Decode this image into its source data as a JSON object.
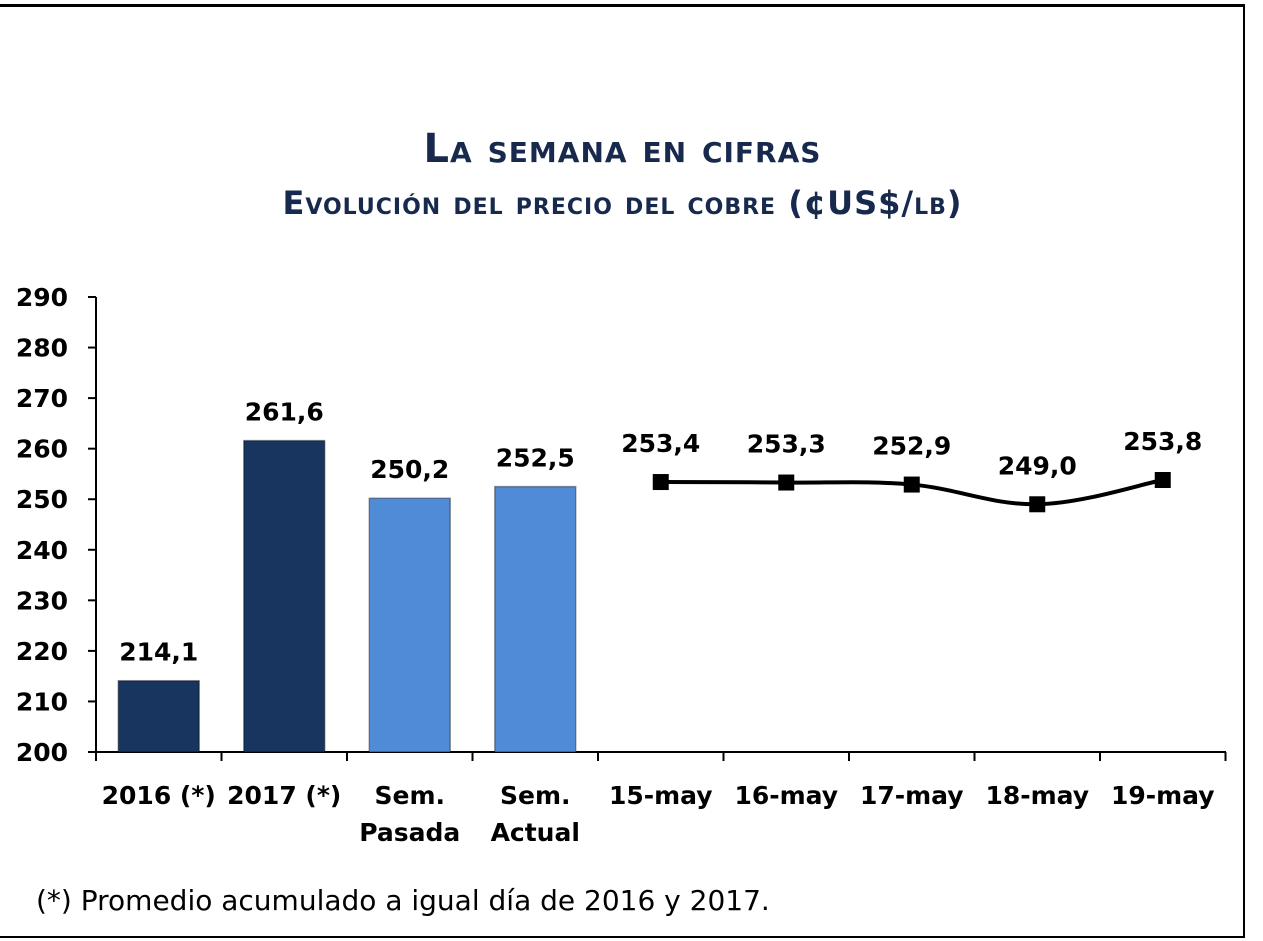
{
  "colors": {
    "historic_bar": "#17355f",
    "weekly_bar": "#4f8bd6",
    "line": "#000000",
    "title": "#17294d"
  },
  "footnote": "(*) Promedio acumulado a igual día de 2016 y 2017.",
  "chart_data": {
    "type": "bar",
    "title": "La semana en cifras",
    "subtitle": "Evolución del precio del cobre  (¢US$/lb)",
    "ylim": [
      200,
      290
    ],
    "yticks": [
      200,
      210,
      220,
      230,
      240,
      250,
      260,
      270,
      280,
      290
    ],
    "grid": false,
    "legend": "none",
    "categories": [
      "2016 (*)",
      "2017 (*)",
      "Sem. Pasada",
      "Sem. Actual",
      "15-may",
      "16-may",
      "17-may",
      "18-may",
      "19-may"
    ],
    "bars": [
      {
        "category": "2016 (*)",
        "label_lines": [
          "2016 (*)"
        ],
        "value": 214.1,
        "value_label": "214,1",
        "color": "#17355f"
      },
      {
        "category": "2017 (*)",
        "label_lines": [
          "2017 (*)"
        ],
        "value": 261.6,
        "value_label": "261,6",
        "color": "#17355f"
      },
      {
        "category": "Sem. Pasada",
        "label_lines": [
          "Sem.",
          "Pasada"
        ],
        "value": 250.2,
        "value_label": "250,2",
        "color": "#4f8bd6"
      },
      {
        "category": "Sem. Actual",
        "label_lines": [
          "Sem.",
          "Actual"
        ],
        "value": 252.5,
        "value_label": "252,5",
        "color": "#4f8bd6"
      }
    ],
    "line": {
      "type": "line",
      "marker": "square",
      "points": [
        {
          "x": "15-may",
          "label_lines": [
            "15-may"
          ],
          "y": 253.4,
          "value_label": "253,4"
        },
        {
          "x": "16-may",
          "label_lines": [
            "16-may"
          ],
          "y": 253.3,
          "value_label": "253,3"
        },
        {
          "x": "17-may",
          "label_lines": [
            "17-may"
          ],
          "y": 252.9,
          "value_label": "252,9"
        },
        {
          "x": "18-may",
          "label_lines": [
            "18-may"
          ],
          "y": 249.0,
          "value_label": "249,0"
        },
        {
          "x": "19-may",
          "label_lines": [
            "19-may"
          ],
          "y": 253.8,
          "value_label": "253,8"
        }
      ]
    }
  }
}
